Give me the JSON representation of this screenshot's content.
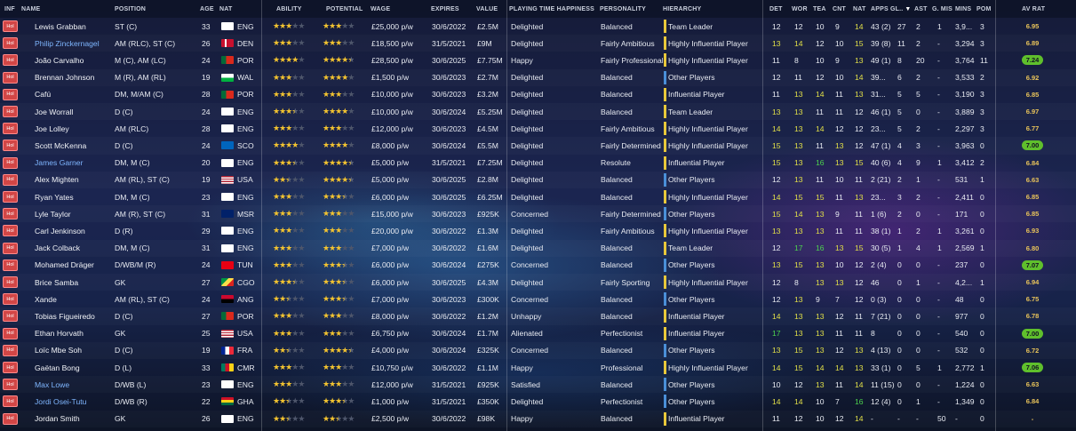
{
  "headers": {
    "inf": "INF",
    "name": "NAME",
    "position": "POSITION",
    "age": "AGE",
    "nat": "NAT",
    "ability": "ABILITY",
    "potential": "POTENTIAL",
    "wage": "WAGE",
    "expires": "EXPIRES",
    "value": "VALUE",
    "happiness": "PLAYING TIME HAPPINESS",
    "personality": "PERSONALITY",
    "hierarchy": "HIERARCHY",
    "det": "DET",
    "wor": "WOR",
    "tea": "TEA",
    "cnt": "CNT",
    "natf": "NAT",
    "apps": "APPS",
    "gls": "GL..",
    "ast": "AST",
    "gmis": "G. MIS",
    "mins": "MINS",
    "pom": "POM",
    "avrat": "AV RAT"
  },
  "colors": {
    "attr_high": "#e2e048",
    "attr_mid": "#e8ebf2",
    "attr_green": "#4ed44e",
    "attr_orange": "#e8a33a",
    "hier_team_leader": "#e8c83a",
    "hier_highly": "#e8c83a",
    "hier_influential": "#e8c83a",
    "hier_other": "#4a8fd8"
  },
  "players": [
    {
      "inf": "Hol",
      "name": "Lewis Grabban",
      "link": false,
      "pos": "ST (C)",
      "age": "33",
      "nat": "ENG",
      "flag": "eng",
      "ab": 3,
      "ab_half": false,
      "pot": 3,
      "pot_half": false,
      "wage": "£25,000 p/w",
      "exp": "30/6/2022",
      "val": "£2.5M",
      "hap": "Delighted",
      "pers": "Balanced",
      "hier": "Team Leader",
      "hc": "gold",
      "det": "12",
      "wor": "12",
      "tea": "10",
      "cnt": "9",
      "natf": "14",
      "apps": "43 (2)",
      "gls": "27",
      "ast": "2",
      "gmis": "1",
      "mins": "3,9...",
      "pom": "3",
      "avr": "6.95",
      "avr_good": false
    },
    {
      "inf": "Hol",
      "name": "Philip Zinckernagel",
      "link": true,
      "pos": "AM (RLC), ST (C)",
      "age": "26",
      "nat": "DEN",
      "flag": "den",
      "ab": 3,
      "ab_half": false,
      "pot": 3,
      "pot_half": false,
      "wage": "£18,500 p/w",
      "exp": "31/5/2021",
      "val": "£9M",
      "hap": "Delighted",
      "pers": "Fairly Ambitious",
      "hier": "Highly Influential Player",
      "hc": "gold",
      "det": "13",
      "wor": "14",
      "tea": "12",
      "cnt": "10",
      "natf": "15",
      "apps": "39 (8)",
      "gls": "11",
      "ast": "2",
      "gmis": "-",
      "mins": "3,294",
      "pom": "3",
      "avr": "6.89",
      "avr_good": false
    },
    {
      "inf": "Hol",
      "name": "João Carvalho",
      "link": false,
      "pos": "M (C), AM (LC)",
      "age": "24",
      "nat": "POR",
      "flag": "por",
      "ab": 4,
      "ab_half": false,
      "pot": 4,
      "pot_half": true,
      "wage": "£28,500 p/w",
      "exp": "30/6/2025",
      "val": "£7.75M",
      "hap": "Happy",
      "pers": "Fairly Professional",
      "hier": "Highly Influential Player",
      "hc": "gold",
      "det": "11",
      "wor": "8",
      "tea": "10",
      "cnt": "9",
      "natf": "13",
      "apps": "49 (1)",
      "gls": "8",
      "ast": "20",
      "gmis": "-",
      "mins": "3,764",
      "pom": "11",
      "avr": "7.24",
      "avr_good": true
    },
    {
      "inf": "Hol",
      "name": "Brennan Johnson",
      "link": false,
      "pos": "M (R), AM (RL)",
      "age": "19",
      "nat": "WAL",
      "flag": "wal",
      "ab": 3,
      "ab_half": false,
      "pot": 4,
      "pot_half": false,
      "wage": "£1,500 p/w",
      "exp": "30/6/2023",
      "val": "£2.7M",
      "hap": "Delighted",
      "pers": "Balanced",
      "hier": "Other Players",
      "hc": "blue",
      "det": "12",
      "wor": "11",
      "tea": "12",
      "cnt": "10",
      "natf": "14",
      "apps": "39...",
      "gls": "6",
      "ast": "2",
      "gmis": "-",
      "mins": "3,533",
      "pom": "2",
      "avr": "6.92",
      "avr_good": false
    },
    {
      "inf": "Hol",
      "name": "Cafú",
      "link": false,
      "pos": "DM, M/AM (C)",
      "age": "28",
      "nat": "POR",
      "flag": "por",
      "ab": 3,
      "ab_half": false,
      "pot": 3,
      "pot_half": false,
      "wage": "£10,000 p/w",
      "exp": "30/6/2023",
      "val": "£3.2M",
      "hap": "Delighted",
      "pers": "Balanced",
      "hier": "Influential Player",
      "hc": "gold",
      "det": "11",
      "wor": "13",
      "tea": "14",
      "cnt": "11",
      "natf": "13",
      "apps": "31...",
      "gls": "5",
      "ast": "5",
      "gmis": "-",
      "mins": "3,190",
      "pom": "3",
      "avr": "6.85",
      "avr_good": false
    },
    {
      "inf": "Hol",
      "name": "Joe Worrall",
      "link": false,
      "pos": "D (C)",
      "age": "24",
      "nat": "ENG",
      "flag": "eng",
      "ab": 3,
      "ab_half": true,
      "pot": 4,
      "pot_half": false,
      "wage": "£10,000 p/w",
      "exp": "30/6/2024",
      "val": "£5.25M",
      "hap": "Delighted",
      "pers": "Balanced",
      "hier": "Team Leader",
      "hc": "gold",
      "det": "13",
      "wor": "13",
      "tea": "11",
      "cnt": "11",
      "natf": "12",
      "apps": "46 (1)",
      "gls": "5",
      "ast": "0",
      "gmis": "-",
      "mins": "3,889",
      "pom": "3",
      "avr": "6.97",
      "avr_good": false
    },
    {
      "inf": "Hol",
      "name": "Joe Lolley",
      "link": false,
      "pos": "AM (RLC)",
      "age": "28",
      "nat": "ENG",
      "flag": "eng",
      "ab": 3,
      "ab_half": false,
      "pot": 3,
      "pot_half": false,
      "wage": "£12,000 p/w",
      "exp": "30/6/2023",
      "val": "£4.5M",
      "hap": "Delighted",
      "pers": "Fairly Ambitious",
      "hier": "Highly Influential Player",
      "hc": "gold",
      "det": "14",
      "wor": "13",
      "tea": "14",
      "cnt": "12",
      "natf": "12",
      "apps": "23...",
      "gls": "5",
      "ast": "2",
      "gmis": "-",
      "mins": "2,297",
      "pom": "3",
      "avr": "6.77",
      "avr_good": false
    },
    {
      "inf": "Hol",
      "name": "Scott McKenna",
      "link": false,
      "pos": "D (C)",
      "age": "24",
      "nat": "SCO",
      "flag": "sco",
      "ab": 4,
      "ab_half": false,
      "pot": 4,
      "pot_half": false,
      "wage": "£8,000 p/w",
      "exp": "30/6/2024",
      "val": "£5.5M",
      "hap": "Delighted",
      "pers": "Fairly Determined",
      "hier": "Highly Influential Player",
      "hc": "gold",
      "det": "15",
      "wor": "13",
      "tea": "11",
      "cnt": "13",
      "natf": "12",
      "apps": "47 (1)",
      "gls": "4",
      "ast": "3",
      "gmis": "-",
      "mins": "3,963",
      "pom": "0",
      "avr": "7.00",
      "avr_good": true
    },
    {
      "inf": "Hol",
      "name": "James Garner",
      "link": true,
      "pos": "DM, M (C)",
      "age": "20",
      "nat": "ENG",
      "flag": "eng",
      "ab": 3,
      "ab_half": true,
      "pot": 4,
      "pot_half": true,
      "wage": "£5,000 p/w",
      "exp": "31/5/2021",
      "val": "£7.25M",
      "hap": "Delighted",
      "pers": "Resolute",
      "hier": "Influential Player",
      "hc": "gold",
      "det": "15",
      "wor": "13",
      "tea": "16",
      "cnt": "13",
      "natf": "15",
      "apps": "40 (6)",
      "gls": "4",
      "ast": "9",
      "gmis": "1",
      "mins": "3,412",
      "pom": "2",
      "avr": "6.84",
      "avr_good": false
    },
    {
      "inf": "Hol",
      "name": "Alex Mighten",
      "link": false,
      "pos": "AM (RL), ST (C)",
      "age": "19",
      "nat": "USA",
      "flag": "usa",
      "ab": 2,
      "ab_half": true,
      "pot": 4,
      "pot_half": true,
      "wage": "£5,000 p/w",
      "exp": "30/6/2025",
      "val": "£2.8M",
      "hap": "Delighted",
      "pers": "Balanced",
      "hier": "Other Players",
      "hc": "blue",
      "det": "12",
      "wor": "13",
      "tea": "11",
      "cnt": "10",
      "natf": "11",
      "apps": "2 (21)",
      "gls": "2",
      "ast": "1",
      "gmis": "-",
      "mins": "531",
      "pom": "1",
      "avr": "6.63",
      "avr_good": false
    },
    {
      "inf": "Hol",
      "name": "Ryan Yates",
      "link": false,
      "pos": "DM, M (C)",
      "age": "23",
      "nat": "ENG",
      "flag": "eng",
      "ab": 3,
      "ab_half": false,
      "pot": 3,
      "pot_half": true,
      "wage": "£6,000 p/w",
      "exp": "30/6/2025",
      "val": "£6.25M",
      "hap": "Delighted",
      "pers": "Balanced",
      "hier": "Highly Influential Player",
      "hc": "gold",
      "det": "14",
      "wor": "15",
      "tea": "15",
      "cnt": "11",
      "natf": "13",
      "apps": "23...",
      "gls": "3",
      "ast": "2",
      "gmis": "-",
      "mins": "2,411",
      "pom": "0",
      "avr": "6.85",
      "avr_good": false
    },
    {
      "inf": "Hol",
      "name": "Lyle Taylor",
      "link": false,
      "pos": "AM (R), ST (C)",
      "age": "31",
      "nat": "MSR",
      "flag": "msr",
      "ab": 3,
      "ab_half": false,
      "pot": 3,
      "pot_half": false,
      "wage": "£15,000 p/w",
      "exp": "30/6/2023",
      "val": "£925K",
      "hap": "Concerned",
      "pers": "Fairly Determined",
      "hier": "Other Players",
      "hc": "blue",
      "det": "15",
      "wor": "14",
      "tea": "13",
      "cnt": "9",
      "natf": "11",
      "apps": "1 (6)",
      "gls": "2",
      "ast": "0",
      "gmis": "-",
      "mins": "171",
      "pom": "0",
      "avr": "6.85",
      "avr_good": false
    },
    {
      "inf": "Hol",
      "name": "Carl Jenkinson",
      "link": false,
      "pos": "D (R)",
      "age": "29",
      "nat": "ENG",
      "flag": "eng",
      "ab": 3,
      "ab_half": false,
      "pot": 3,
      "pot_half": false,
      "wage": "£20,000 p/w",
      "exp": "30/6/2022",
      "val": "£1.3M",
      "hap": "Delighted",
      "pers": "Fairly Ambitious",
      "hier": "Highly Influential Player",
      "hc": "gold",
      "det": "13",
      "wor": "13",
      "tea": "13",
      "cnt": "11",
      "natf": "11",
      "apps": "38 (1)",
      "gls": "1",
      "ast": "2",
      "gmis": "1",
      "mins": "3,261",
      "pom": "0",
      "avr": "6.93",
      "avr_good": false
    },
    {
      "inf": "Hol",
      "name": "Jack Colback",
      "link": false,
      "pos": "DM, M (C)",
      "age": "31",
      "nat": "ENG",
      "flag": "eng",
      "ab": 3,
      "ab_half": false,
      "pot": 3,
      "pot_half": false,
      "wage": "£7,000 p/w",
      "exp": "30/6/2022",
      "val": "£1.6M",
      "hap": "Delighted",
      "pers": "Balanced",
      "hier": "Team Leader",
      "hc": "gold",
      "det": "12",
      "wor": "17",
      "tea": "16",
      "cnt": "13",
      "natf": "15",
      "apps": "30 (5)",
      "gls": "1",
      "ast": "4",
      "gmis": "1",
      "mins": "2,569",
      "pom": "1",
      "avr": "6.80",
      "avr_good": false
    },
    {
      "inf": "Hol",
      "name": "Mohamed Dräger",
      "link": false,
      "pos": "D/WB/M (R)",
      "age": "24",
      "nat": "TUN",
      "flag": "tun",
      "ab": 3,
      "ab_half": false,
      "pot": 3,
      "pot_half": true,
      "wage": "£6,000 p/w",
      "exp": "30/6/2024",
      "val": "£275K",
      "hap": "Concerned",
      "pers": "Balanced",
      "hier": "Other Players",
      "hc": "blue",
      "det": "13",
      "wor": "15",
      "tea": "13",
      "cnt": "10",
      "natf": "12",
      "apps": "2 (4)",
      "gls": "0",
      "ast": "0",
      "gmis": "-",
      "mins": "237",
      "pom": "0",
      "avr": "7.07",
      "avr_good": true
    },
    {
      "inf": "Hol",
      "name": "Brice Samba",
      "link": false,
      "pos": "GK",
      "age": "27",
      "nat": "CGO",
      "flag": "cgo",
      "ab": 3,
      "ab_half": true,
      "pot": 3,
      "pot_half": true,
      "wage": "£6,000 p/w",
      "exp": "30/6/2025",
      "val": "£4.3M",
      "hap": "Delighted",
      "pers": "Fairly Sporting",
      "hier": "Highly Influential Player",
      "hc": "gold",
      "det": "12",
      "wor": "8",
      "tea": "13",
      "cnt": "13",
      "natf": "12",
      "apps": "46",
      "gls": "0",
      "ast": "1",
      "gmis": "-",
      "mins": "4,2...",
      "pom": "1",
      "avr": "6.94",
      "avr_good": false
    },
    {
      "inf": "Hol",
      "name": "Xande",
      "link": false,
      "pos": "AM (RL), ST (C)",
      "age": "24",
      "nat": "ANG",
      "flag": "ang",
      "ab": 2,
      "ab_half": true,
      "pot": 3,
      "pot_half": true,
      "wage": "£7,000 p/w",
      "exp": "30/6/2023",
      "val": "£300K",
      "hap": "Concerned",
      "pers": "Balanced",
      "hier": "Other Players",
      "hc": "blue",
      "det": "12",
      "wor": "13",
      "tea": "9",
      "cnt": "7",
      "natf": "12",
      "apps": "0 (3)",
      "gls": "0",
      "ast": "0",
      "gmis": "-",
      "mins": "48",
      "pom": "0",
      "avr": "6.75",
      "avr_good": false
    },
    {
      "inf": "Hol",
      "name": "Tobias Figueiredo",
      "link": false,
      "pos": "D (C)",
      "age": "27",
      "nat": "POR",
      "flag": "por",
      "ab": 3,
      "ab_half": false,
      "pot": 3,
      "pot_half": false,
      "wage": "£8,000 p/w",
      "exp": "30/6/2022",
      "val": "£1.2M",
      "hap": "Unhappy",
      "pers": "Balanced",
      "hier": "Influential Player",
      "hc": "gold",
      "det": "14",
      "wor": "13",
      "tea": "13",
      "cnt": "12",
      "natf": "11",
      "apps": "7 (21)",
      "gls": "0",
      "ast": "0",
      "gmis": "-",
      "mins": "977",
      "pom": "0",
      "avr": "6.78",
      "avr_good": false
    },
    {
      "inf": "Hol",
      "name": "Ethan Horvath",
      "link": false,
      "pos": "GK",
      "age": "25",
      "nat": "USA",
      "flag": "usa",
      "ab": 3,
      "ab_half": false,
      "pot": 3,
      "pot_half": false,
      "wage": "£6,750 p/w",
      "exp": "30/6/2024",
      "val": "£1.7M",
      "hap": "Alienated",
      "pers": "Perfectionist",
      "hier": "Influential Player",
      "hc": "gold",
      "det": "17",
      "wor": "13",
      "tea": "13",
      "cnt": "11",
      "natf": "11",
      "apps": "8",
      "gls": "0",
      "ast": "0",
      "gmis": "-",
      "mins": "540",
      "pom": "0",
      "avr": "7.00",
      "avr_good": true
    },
    {
      "inf": "Hol",
      "name": "Loïc Mbe Soh",
      "link": false,
      "pos": "D (C)",
      "age": "19",
      "nat": "FRA",
      "flag": "fra",
      "ab": 2,
      "ab_half": true,
      "pot": 4,
      "pot_half": true,
      "wage": "£4,000 p/w",
      "exp": "30/6/2024",
      "val": "£325K",
      "hap": "Concerned",
      "pers": "Balanced",
      "hier": "Other Players",
      "hc": "blue",
      "det": "13",
      "wor": "15",
      "tea": "13",
      "cnt": "12",
      "natf": "13",
      "apps": "4 (13)",
      "gls": "0",
      "ast": "0",
      "gmis": "-",
      "mins": "532",
      "pom": "0",
      "avr": "6.72",
      "avr_good": false
    },
    {
      "inf": "Hol",
      "name": "Gaëtan Bong",
      "link": false,
      "pos": "D (L)",
      "age": "33",
      "nat": "CMR",
      "flag": "cmr",
      "ab": 3,
      "ab_half": false,
      "pot": 3,
      "pot_half": false,
      "wage": "£10,750 p/w",
      "exp": "30/6/2022",
      "val": "£1.1M",
      "hap": "Happy",
      "pers": "Professional",
      "hier": "Highly Influential Player",
      "hc": "gold",
      "det": "14",
      "wor": "15",
      "tea": "14",
      "cnt": "14",
      "natf": "13",
      "apps": "33 (1)",
      "gls": "0",
      "ast": "5",
      "gmis": "1",
      "mins": "2,772",
      "pom": "1",
      "avr": "7.06",
      "avr_good": true
    },
    {
      "inf": "Hol",
      "name": "Max Lowe",
      "link": true,
      "pos": "D/WB (L)",
      "age": "23",
      "nat": "ENG",
      "flag": "eng",
      "ab": 3,
      "ab_half": false,
      "pot": 3,
      "pot_half": false,
      "wage": "£12,000 p/w",
      "exp": "31/5/2021",
      "val": "£925K",
      "hap": "Satisfied",
      "pers": "Balanced",
      "hier": "Other Players",
      "hc": "blue",
      "det": "10",
      "wor": "12",
      "tea": "13",
      "cnt": "11",
      "natf": "14",
      "apps": "11 (15)",
      "gls": "0",
      "ast": "0",
      "gmis": "-",
      "mins": "1,224",
      "pom": "0",
      "avr": "6.63",
      "avr_good": false
    },
    {
      "inf": "Hol",
      "name": "Jordi Osei-Tutu",
      "link": true,
      "pos": "D/WB (R)",
      "age": "22",
      "nat": "GHA",
      "flag": "gha",
      "ab": 2,
      "ab_half": true,
      "pot": 3,
      "pot_half": true,
      "wage": "£1,000 p/w",
      "exp": "31/5/2021",
      "val": "£350K",
      "hap": "Delighted",
      "pers": "Perfectionist",
      "hier": "Other Players",
      "hc": "blue",
      "det": "14",
      "wor": "14",
      "tea": "10",
      "cnt": "7",
      "natf": "16",
      "apps": "12 (4)",
      "gls": "0",
      "ast": "1",
      "gmis": "-",
      "mins": "1,349",
      "pom": "0",
      "avr": "6.84",
      "avr_good": false
    },
    {
      "inf": "Hol",
      "name": "Jordan Smith",
      "link": false,
      "pos": "GK",
      "age": "26",
      "nat": "ENG",
      "flag": "eng",
      "ab": 2,
      "ab_half": true,
      "pot": 2,
      "pot_half": true,
      "wage": "£2,500 p/w",
      "exp": "30/6/2022",
      "val": "£98K",
      "hap": "Happy",
      "pers": "Balanced",
      "hier": "Influential Player",
      "hc": "gold",
      "det": "11",
      "wor": "12",
      "tea": "10",
      "cnt": "12",
      "natf": "14",
      "apps": "-",
      "gls": "-",
      "ast": "-",
      "gmis": "50",
      "mins": "-",
      "pom": "0",
      "avr": "-",
      "avr_good": false
    }
  ]
}
